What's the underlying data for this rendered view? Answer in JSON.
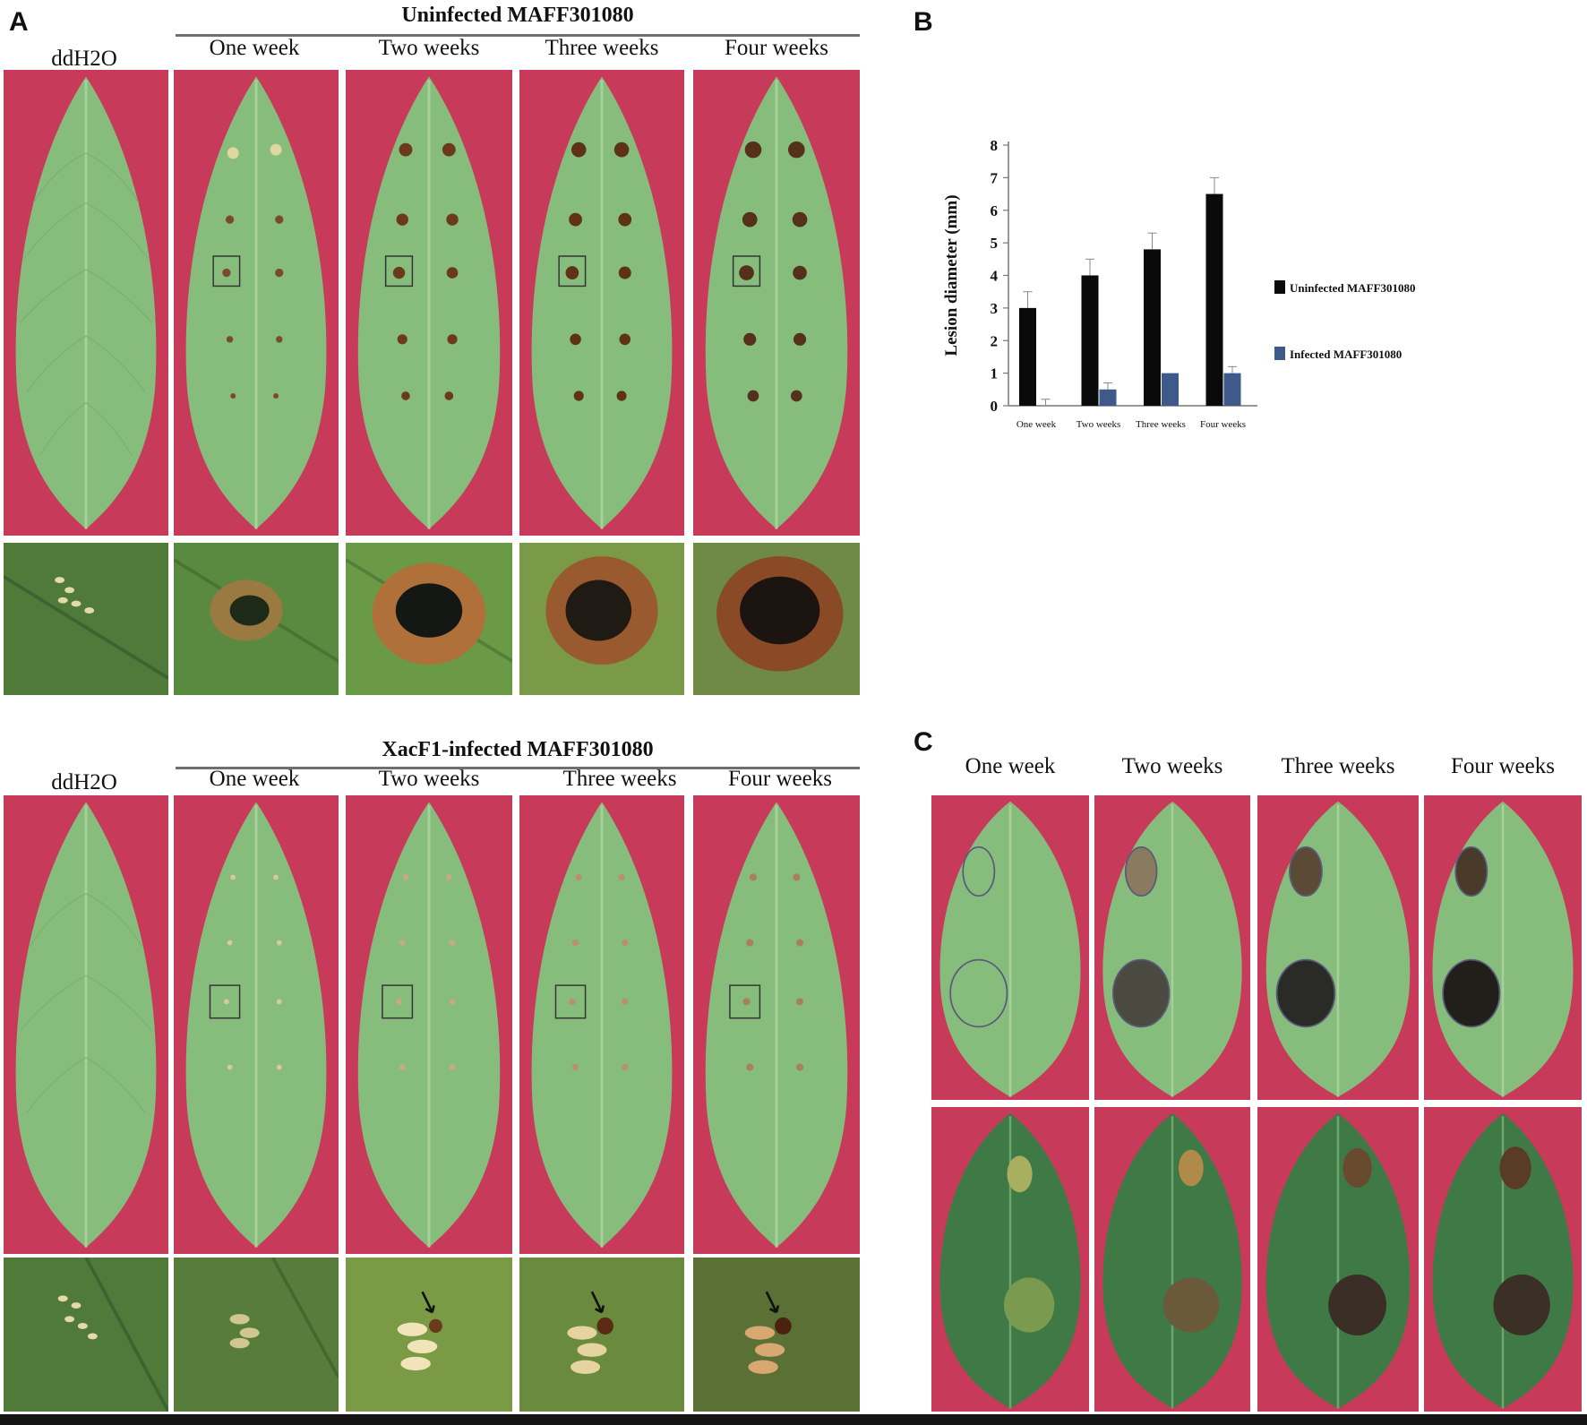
{
  "panels": {
    "a_letter": "A",
    "b_letter": "B",
    "c_letter": "C"
  },
  "panel_a": {
    "uninfected": {
      "group_title": "Uninfected MAFF301080",
      "columns": [
        "ddH2O",
        "One week",
        "Two weeks",
        "Three weeks",
        "Four weeks"
      ]
    },
    "infected": {
      "group_title": "XacF1-infected MAFF301080",
      "columns": [
        "ddH2O",
        "One week",
        "Two weeks",
        "Three weeks",
        "Four weeks"
      ]
    }
  },
  "panel_c": {
    "columns": [
      "One week",
      "Two weeks",
      "Three weeks",
      "Four weeks"
    ]
  },
  "colors": {
    "photo_background": "#c83a5a",
    "leaf": "#86bd7d",
    "leaf_dark": "#3f7a46",
    "series_uninfected": "#0a0a0a",
    "series_infected": "#3d5a8a"
  },
  "chart_data": {
    "type": "bar",
    "categories": [
      "One week",
      "Two weeks",
      "Three weeks",
      "Four weeks"
    ],
    "series": [
      {
        "name": "Uninfected MAFF301080",
        "values": [
          3.0,
          4.0,
          4.8,
          6.5
        ],
        "errors": [
          0.5,
          0.5,
          0.5,
          0.5
        ]
      },
      {
        "name": "Infected MAFF301080",
        "values": [
          0.0,
          0.5,
          1.0,
          1.0
        ],
        "errors": [
          0.2,
          0.2,
          0.0,
          0.2
        ]
      }
    ],
    "ylabel": "Lesion diameter (mm)",
    "ylim": [
      0,
      8
    ],
    "yticks": [
      0,
      1,
      2,
      3,
      4,
      5,
      6,
      7,
      8
    ],
    "legend": "right",
    "grid": false
  }
}
